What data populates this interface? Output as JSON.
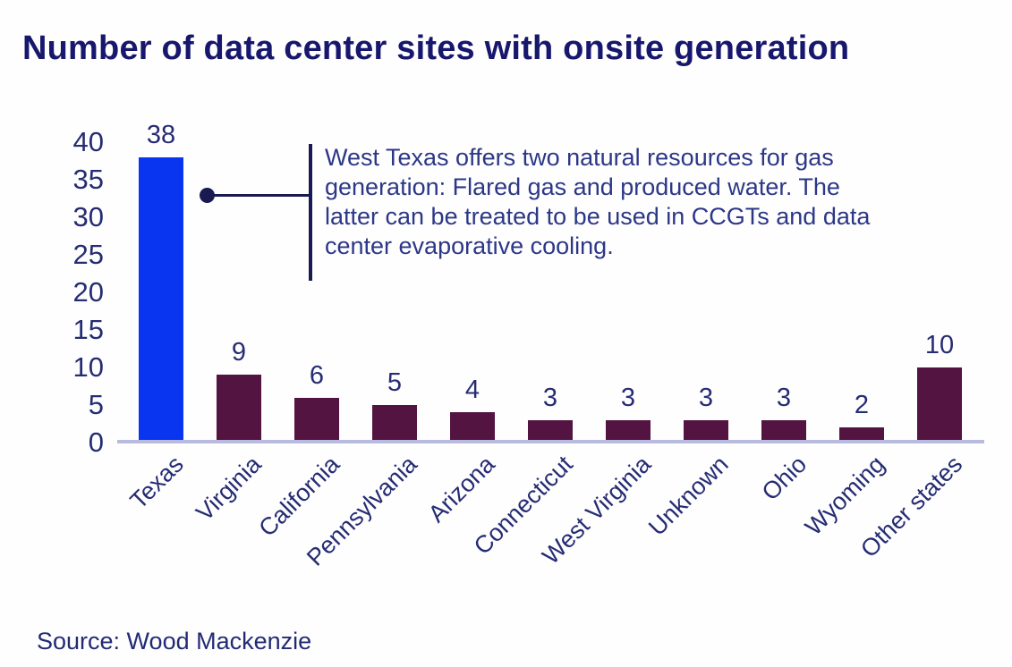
{
  "title": "Number of data center sites with onsite generation",
  "source": "Source: Wood Mackenzie",
  "annotation": {
    "lines": [
      "West Texas offers two natural resources for gas",
      "generation: Flared gas and produced water. The",
      "latter can be treated to be used in CCGTs and data",
      "center evaporative cooling."
    ]
  },
  "colors": {
    "highlight_bar": "#0935f0",
    "default_bar": "#541441",
    "title_text": "#17176d",
    "axis_text": "#262c74",
    "annotation_text": "#2c3787",
    "callout": "#191a52",
    "axis_line": "#b8bade",
    "background": "#ffffff"
  },
  "chart_data": {
    "type": "bar",
    "title": "Number of data center sites with onsite generation",
    "categories": [
      "Texas",
      "Virginia",
      "California",
      "Pennsylvania",
      "Arizona",
      "Connecticut",
      "West Virginia",
      "Unknown",
      "Ohio",
      "Wyoming",
      "Other states"
    ],
    "values": [
      38,
      9,
      6,
      5,
      4,
      3,
      3,
      3,
      3,
      2,
      10
    ],
    "highlight_index": 0,
    "yticks": [
      0,
      5,
      10,
      15,
      20,
      25,
      30,
      35,
      40
    ],
    "ylim": [
      0,
      40
    ],
    "xlabel": "",
    "ylabel": "",
    "grid": false,
    "legend_position": "none",
    "data_labels": true,
    "annotation": "West Texas offers two natural resources for gas generation: Flared gas and produced water. The latter can be treated to be used in CCGTs and data center evaporative cooling.",
    "annotation_points_at_value": 33,
    "source": "Source: Wood Mackenzie"
  }
}
